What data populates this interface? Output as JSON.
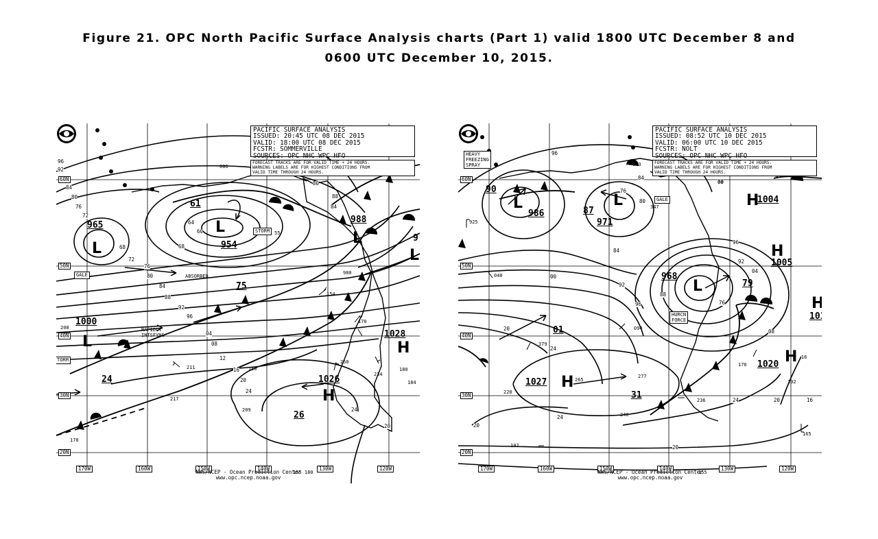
{
  "caption": {
    "line1": "Figure 21.  OPC North Pacific Surface Analysis charts (Part 1) valid 1800 UTC December 8 and",
    "line2": "0600 UTC December 10, 2015."
  },
  "left_chart": {
    "header": {
      "title": "PACIFIC SURFACE ANALYSIS",
      "issued": "ISSUED: 20:45 UTC 08 DEC 2015",
      "valid": "VALID:  18:00 UTC 08 DEC 2015",
      "fcstr": "FCSTR:  SOMMERVILLE",
      "sources": "SOURCES: OPC NHC WPC HFO"
    },
    "note": [
      "FORECAST TRACKS ARE FOR VALID TIME + 24 HOURS.",
      "WARNING LABELS ARE FOR HIGHEST CONDITIONS FROM",
      "VALID TIME THROUGH 24 HOURS."
    ],
    "footer": [
      "NWS/NCEP - Ocean Prediction Center",
      "www.opc.ncep.noaa.gov"
    ],
    "lat_labels": [
      "60N",
      "50N",
      "40N",
      "30N",
      "20N"
    ],
    "lon_labels": [
      "170W",
      "160W",
      "150W",
      "140W",
      "130W",
      "120W"
    ],
    "pressure_labels": {
      "p965": "965",
      "p954": "954",
      "p988": "988",
      "p1000": "1000",
      "p1028": "1028",
      "p1026": "1026",
      "p61": "61",
      "p75": "75",
      "p24": "24",
      "p26": "26",
      "p9": "9"
    },
    "isobar_labels": [
      "96",
      "92",
      "88",
      "84",
      "80",
      "76",
      "72",
      "68",
      "64",
      "60",
      "80",
      "84",
      "88",
      "92",
      "96",
      "04",
      "08",
      "12",
      "16",
      "20",
      "24",
      "20",
      "24",
      "76",
      "72",
      "68",
      "88",
      "84",
      "80"
    ],
    "warnings": {
      "storm": "STORM",
      "gale": "GALE",
      "torm": "TORM"
    },
    "annotations": {
      "absorbed": "ABSORBED",
      "rapidly": "RAPIDLY",
      "intsfyng": "INTSFYNG"
    },
    "station_values": [
      "154",
      "980",
      "170",
      "250",
      "234",
      "180",
      "184",
      "211",
      "150",
      "217",
      "209",
      "170",
      "208",
      "55",
      "086"
    ],
    "footer_extra": "155 180"
  },
  "right_chart": {
    "header": {
      "title": "PACIFIC SURFACE ANALYSIS",
      "issued": "ISSUED: 08:52 UTC 10 DEC 2015",
      "valid": "VALID:  06:00 UTC 10 DEC 2015",
      "fcstr": "FCSTR:  NOLT",
      "sources": "SOURCES: OPC NHC WPC HFO"
    },
    "note": [
      "FORECAST TRACKS ARE FOR VALID TIME + 24 HOURS.",
      "WARNING LABELS ARE FOR HIGHEST CONDITIONS FROM",
      "VALID TIME THROUGH 24 HOURS."
    ],
    "footer": [
      "NWS/NCEP - Ocean Prediction Center",
      "www.opc.ncep.noaa.gov"
    ],
    "lat_labels": [
      "60N",
      "50N",
      "40N",
      "30N",
      "20N"
    ],
    "lon_labels": [
      "170W",
      "160W",
      "150W",
      "140W",
      "130W",
      "120W"
    ],
    "pressure_labels": {
      "p90": "90",
      "p986": "986",
      "p87": "87",
      "p971": "971",
      "p968": "968",
      "p79": "79",
      "p1004": "1004",
      "p1005": "1005",
      "p01": "01",
      "p1027": "1027",
      "p31": "31",
      "p1020": "1020",
      "p101": "101"
    },
    "isobar_labels": [
      "96",
      "84",
      "80",
      "76",
      "00",
      "92",
      "96",
      "88",
      "84",
      "80",
      "76",
      "20",
      "24",
      "24",
      "20",
      "08",
      "04",
      "00",
      "96",
      "92",
      "24",
      "20",
      "16",
      "20"
    ],
    "warnings": {
      "heavy": "HEAVY",
      "freezing": "FREEZING",
      "spray": "SPRAY",
      "gale": "GALE",
      "hurcn": "HURCN",
      "force": "FORCE"
    },
    "station_values": [
      "925",
      "040",
      "379",
      "265",
      "277",
      "236",
      "246",
      "220",
      "192",
      "094",
      "170",
      "192",
      "165",
      "347",
      "963",
      "16",
      "00"
    ],
    "footer_extra": "155"
  }
}
